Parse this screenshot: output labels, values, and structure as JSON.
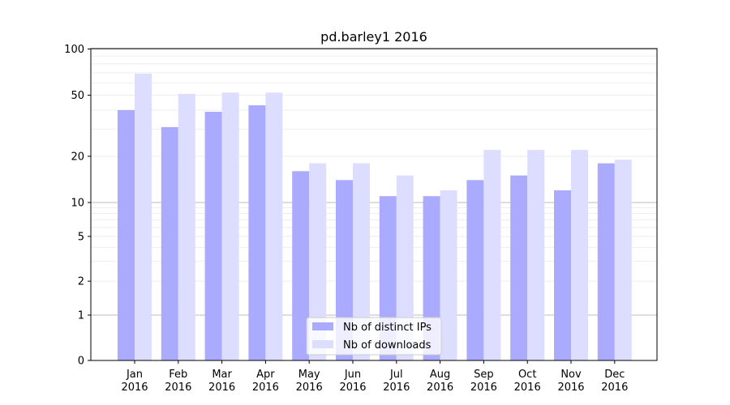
{
  "chart_data": {
    "type": "bar",
    "title": "pd.barley1 2016",
    "xlabel": "",
    "ylabel": "",
    "yscale": "symlog",
    "ylim": [
      0,
      110
    ],
    "yticks": [
      0,
      1,
      2,
      5,
      10,
      20,
      50,
      100
    ],
    "grid": "horizontal",
    "legend_position": "bottom-center",
    "categories": [
      [
        "Jan",
        "2016"
      ],
      [
        "Feb",
        "2016"
      ],
      [
        "Mar",
        "2016"
      ],
      [
        "Apr",
        "2016"
      ],
      [
        "May",
        "2016"
      ],
      [
        "Jun",
        "2016"
      ],
      [
        "Jul",
        "2016"
      ],
      [
        "Aug",
        "2016"
      ],
      [
        "Sep",
        "2016"
      ],
      [
        "Oct",
        "2016"
      ],
      [
        "Nov",
        "2016"
      ],
      [
        "Dec",
        "2016"
      ]
    ],
    "series": [
      {
        "name": "Nb of distinct IPs",
        "color": "#aaaaff",
        "values": [
          40,
          31,
          39,
          43,
          16,
          14,
          11,
          11,
          14,
          15,
          12,
          18
        ]
      },
      {
        "name": "Nb of downloads",
        "color": "#ddddff",
        "values": [
          69,
          51,
          52,
          52,
          18,
          18,
          15,
          12,
          22,
          22,
          22,
          19
        ]
      }
    ]
  }
}
